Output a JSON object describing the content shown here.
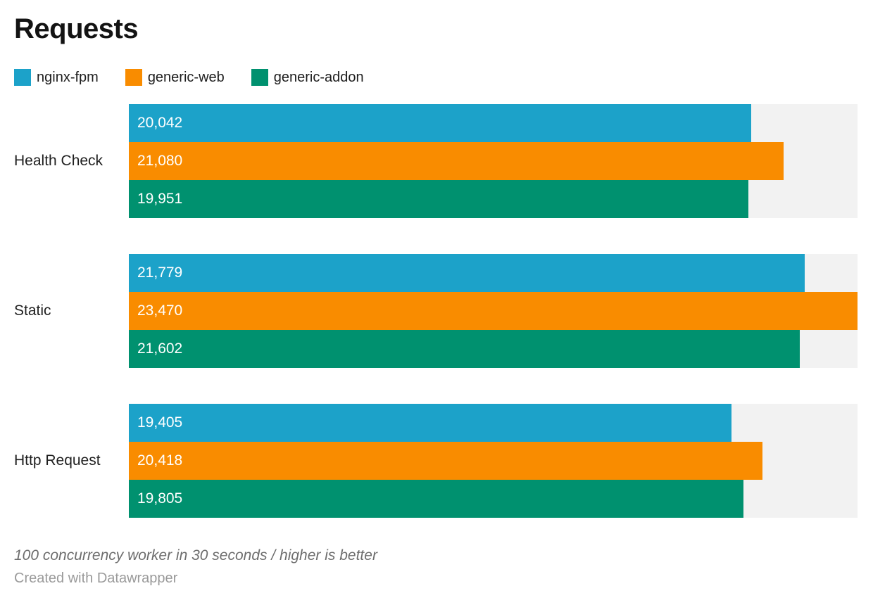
{
  "title": "Requests",
  "chart_data": {
    "type": "bar",
    "orientation": "horizontal",
    "title": "Requests",
    "categories": [
      "Health Check",
      "Static",
      "Http Request"
    ],
    "series": [
      {
        "name": "nginx-fpm",
        "color": "#1CA2C9",
        "values": [
          20042,
          21779,
          19405
        ]
      },
      {
        "name": "generic-web",
        "color": "#F98C00",
        "values": [
          21080,
          23470,
          20418
        ]
      },
      {
        "name": "generic-addon",
        "color": "#00916F",
        "values": [
          19951,
          21602,
          19805
        ]
      }
    ],
    "value_labels": [
      [
        "20,042",
        "21,779",
        "19,405"
      ],
      [
        "21,080",
        "23,470",
        "20,418"
      ],
      [
        "19,951",
        "21,602",
        "19,805"
      ]
    ],
    "xlim": [
      0,
      23470
    ],
    "grid": false,
    "legend_position": "top",
    "track_color": "#F2F2F2",
    "value_label_color": "#FFFFFF",
    "note": "100 concurrency worker in 30 seconds / higher is better"
  },
  "footer": {
    "note": "100 concurrency worker in 30 seconds / higher is better",
    "attribution": "Created with Datawrapper"
  }
}
